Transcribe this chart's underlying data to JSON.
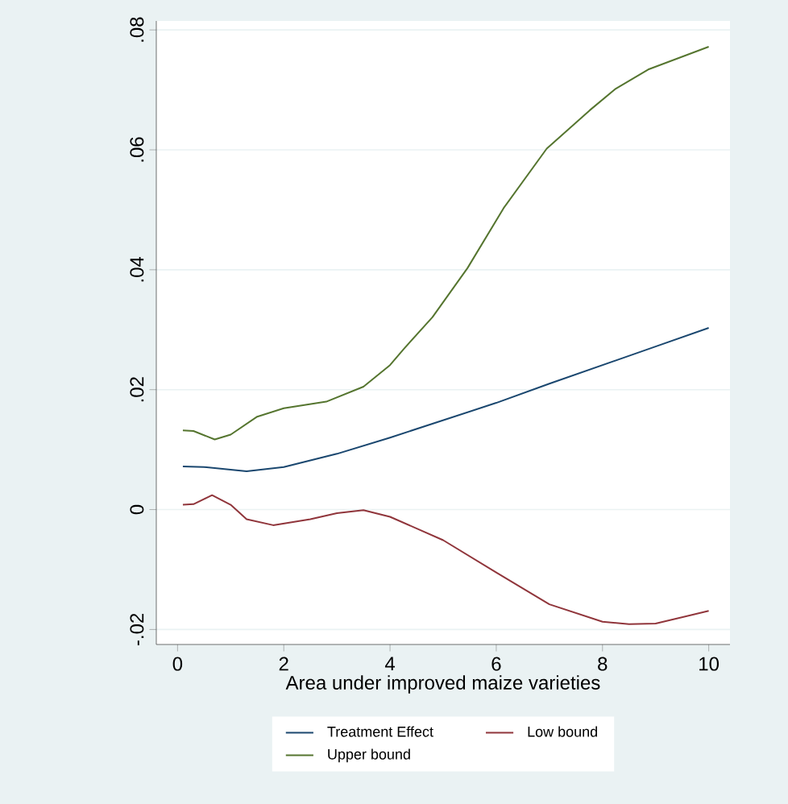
{
  "chart_data": {
    "type": "line",
    "xlabel": "Area under improved maize varieties",
    "xlim": [
      -0.4,
      10.4
    ],
    "ylim": [
      -0.0225,
      0.0815
    ],
    "xticks": [
      0,
      2,
      4,
      6,
      8,
      10
    ],
    "yticks": [
      {
        "value": -0.02,
        "label": "-.02"
      },
      0,
      {
        "value": 0.02,
        "label": ".02"
      },
      {
        "value": 0.04,
        "label": ".04"
      },
      {
        "value": 0.06,
        "label": ".06"
      },
      {
        "value": 0.08,
        "label": ".08"
      }
    ],
    "grid": "y",
    "legend": "bottom",
    "marker": "none",
    "line_style": "solid",
    "series": [
      {
        "name": "Treatment Effect",
        "color": "#1a476f",
        "x": [
          0.1,
          0.5,
          1.3,
          2,
          3,
          4,
          5,
          6,
          7,
          8,
          9,
          10
        ],
        "values": [
          0.0072,
          0.0071,
          0.0064,
          0.0071,
          0.0093,
          0.012,
          0.0149,
          0.0178,
          0.021,
          0.0241,
          0.0272,
          0.0303
        ]
      },
      {
        "name": "Low bound",
        "color": "#90353b",
        "x": [
          0.1,
          0.3,
          0.65,
          1,
          1.3,
          1.8,
          2.5,
          3,
          3.5,
          4,
          5,
          6,
          7,
          8,
          8.5,
          9,
          10
        ],
        "values": [
          0.0008,
          0.0009,
          0.0024,
          0.0008,
          -0.0016,
          -0.0026,
          -0.0016,
          -0.0006,
          -0.0001,
          -0.0012,
          -0.0051,
          -0.0105,
          -0.0158,
          -0.0187,
          -0.0191,
          -0.019,
          -0.0169
        ]
      },
      {
        "name": "Upper bound",
        "color": "#55752f",
        "x": [
          0.1,
          0.3,
          0.7,
          1,
          1.5,
          2,
          2.8,
          3.5,
          4,
          4.25,
          4.8,
          5.46,
          6.14,
          6.95,
          7.76,
          8.25,
          8.86,
          10
        ],
        "values": [
          0.0132,
          0.0131,
          0.0117,
          0.0125,
          0.0155,
          0.0169,
          0.018,
          0.0205,
          0.0241,
          0.0267,
          0.0321,
          0.0403,
          0.0503,
          0.0602,
          0.0666,
          0.0702,
          0.0734,
          0.0772
        ]
      }
    ]
  }
}
